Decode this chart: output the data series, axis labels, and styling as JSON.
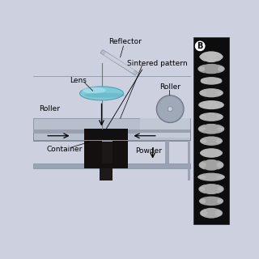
{
  "bg_color": "#cdd0de",
  "table_top_color": "#b8bfcc",
  "table_top_dark": "#9aa0b0",
  "table_base_color": "#9aa2b4",
  "sintered_dark": "#1a1414",
  "sintered_mid": "#2a2020",
  "lens_color": "#7ecad8",
  "lens_highlight": "#b8e8f0",
  "lens_shadow": "#4a9ab0",
  "roller_color": "#909aaa",
  "roller_light": "#b8c0cc",
  "reflector_color": "#b8bcc8",
  "reflector_highlight": "#d8dce8",
  "stem_color": "#707880",
  "label_fontsize": 6.5,
  "panel_b_label_fontsize": 7,
  "labels": {
    "reflector": "Reflector",
    "sintered": "Sintered pattern",
    "lens": "Lens",
    "roller_right": "Roller",
    "roller_left": "Roller",
    "container": "Container",
    "powder": "Powder",
    "panel_b": "B"
  }
}
